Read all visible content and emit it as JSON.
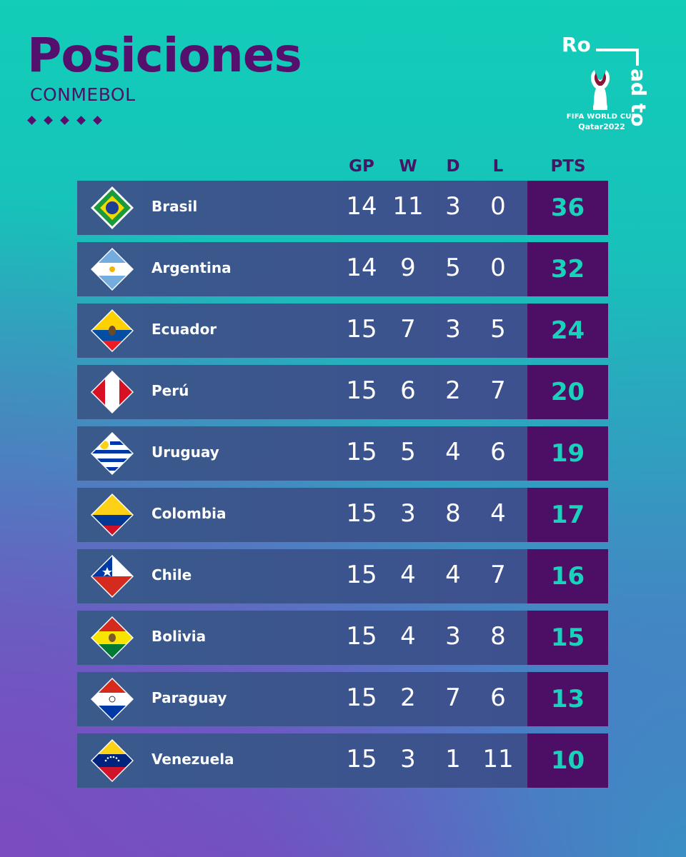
{
  "header": {
    "title": "Posiciones",
    "subtitle": "CONMEBOL"
  },
  "logo": {
    "text_top": "Ro",
    "text_side": "ad to",
    "line1": "FIFA WORLD CUP",
    "line2": "Qatar2022"
  },
  "table": {
    "columns": [
      "GP",
      "W",
      "D",
      "L",
      "PTS"
    ],
    "rows": [
      {
        "country": "Brasil",
        "flag": "brazil-flag-icon",
        "gp": "14",
        "w": "11",
        "d": "3",
        "l": "0",
        "pts": "36"
      },
      {
        "country": "Argentina",
        "flag": "argentina-flag-icon",
        "gp": "14",
        "w": "9",
        "d": "5",
        "l": "0",
        "pts": "32"
      },
      {
        "country": "Ecuador",
        "flag": "ecuador-flag-icon",
        "gp": "15",
        "w": "7",
        "d": "3",
        "l": "5",
        "pts": "24"
      },
      {
        "country": "Perú",
        "flag": "peru-flag-icon",
        "gp": "15",
        "w": "6",
        "d": "2",
        "l": "7",
        "pts": "20"
      },
      {
        "country": "Uruguay",
        "flag": "uruguay-flag-icon",
        "gp": "15",
        "w": "5",
        "d": "4",
        "l": "6",
        "pts": "19"
      },
      {
        "country": "Colombia",
        "flag": "colombia-flag-icon",
        "gp": "15",
        "w": "3",
        "d": "8",
        "l": "4",
        "pts": "17"
      },
      {
        "country": "Chile",
        "flag": "chile-flag-icon",
        "gp": "15",
        "w": "4",
        "d": "4",
        "l": "7",
        "pts": "16"
      },
      {
        "country": "Bolivia",
        "flag": "bolivia-flag-icon",
        "gp": "15",
        "w": "4",
        "d": "3",
        "l": "8",
        "pts": "15"
      },
      {
        "country": "Paraguay",
        "flag": "paraguay-flag-icon",
        "gp": "15",
        "w": "2",
        "d": "7",
        "l": "6",
        "pts": "13"
      },
      {
        "country": "Venezuela",
        "flag": "venezuela-flag-icon",
        "gp": "15",
        "w": "3",
        "d": "1",
        "l": "11",
        "pts": "10"
      }
    ]
  },
  "colors": {
    "title": "#55106e",
    "pts_bg": "#4d0f66",
    "pts_text": "#18d2bb",
    "row_bg": "#3e4f8e"
  }
}
